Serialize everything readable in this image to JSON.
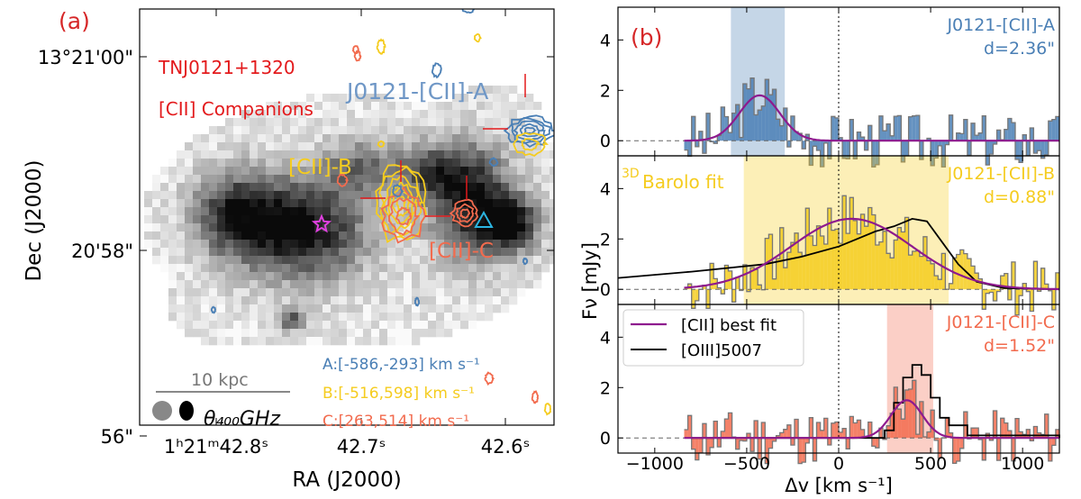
{
  "panel_a": {
    "label": "(a)",
    "target": "TNJ0121+1320",
    "subtitle": "[CII] Companions",
    "companion_a_name": "J0121-[CII]-A",
    "companion_b_name": "[CII]-B",
    "companion_c_name": "[CII]-C",
    "range_a": "A:[-586,-293] km s⁻¹",
    "range_b": "B:[-516,598] km s⁻¹",
    "range_c": "C:[263,514] km s⁻¹",
    "scalebar_label": "10 kpc",
    "beam_label": "θ₄₀₀GHz",
    "ylabel": "Dec (J2000)",
    "xlabel": "RA (J2000)",
    "dec_ticks": [
      "13°21'00\"",
      "20'58\"",
      "56\""
    ],
    "ra_ticks": [
      "1ʰ21ᵐ42.8ˢ",
      "42.7ˢ",
      "42.6ˢ"
    ],
    "colors": {
      "a": "#4a7fb5",
      "b": "#f5cc1f",
      "c": "#f26b4e",
      "label": "#e31a1c",
      "star": "#e040e0",
      "triangle": "#2bb4e0"
    }
  },
  "chart_data": {
    "type": "line",
    "label": "(b)",
    "xlabel": "Δv [km s⁻¹]",
    "ylabel": "Fν [mJy]",
    "xlim": [
      -1200,
      1200
    ],
    "ylim": [
      -0.6,
      5.3
    ],
    "xticks": [
      "−1000",
      "−500",
      "0",
      "500",
      "1000"
    ],
    "yticks": [
      "0",
      "2",
      "4"
    ],
    "barolo_label": "Barolo fit",
    "barolo_sup": "3D",
    "legend": [
      "[CII] best fit",
      "[OIII]5007"
    ],
    "panels": [
      {
        "name": "J0121-[CII]-A",
        "distance": "d=2.36\"",
        "color": "#4a7fb5",
        "band": [
          -586,
          -293
        ],
        "gauss": {
          "amp": 1.8,
          "center": -430,
          "sigma": 110
        },
        "seed": 3
      },
      {
        "name": "J0121-[CII]-B",
        "distance": "d=0.88\"",
        "color": "#f5cc1f",
        "band": [
          -516,
          598
        ],
        "gauss": {
          "amp": 2.8,
          "center": 70,
          "sigma": 330
        },
        "seed": 7
      },
      {
        "name": "J0121-[CII]-C",
        "distance": "d=1.52\"",
        "color": "#f26b4e",
        "band": [
          263,
          514
        ],
        "gauss": {
          "amp": 1.5,
          "center": 370,
          "sigma": 85
        },
        "seed": 11
      }
    ],
    "oiii_b": {
      "x": [
        -1200,
        -800,
        -400,
        -200,
        0,
        100,
        200,
        300,
        400,
        480,
        550,
        650,
        750,
        900,
        1200
      ],
      "y": [
        0.45,
        0.7,
        1.0,
        1.3,
        1.7,
        2.0,
        2.3,
        2.5,
        2.8,
        2.7,
        2.0,
        1.0,
        0.3,
        0.05,
        0
      ]
    },
    "oiii_c": {
      "x": [
        -800,
        150,
        250,
        300,
        350,
        400,
        450,
        500,
        550,
        600,
        700,
        1200
      ],
      "y": [
        0,
        0,
        0.3,
        1.4,
        2.4,
        2.9,
        2.5,
        1.6,
        0.8,
        0.5,
        0.1,
        0
      ]
    }
  }
}
